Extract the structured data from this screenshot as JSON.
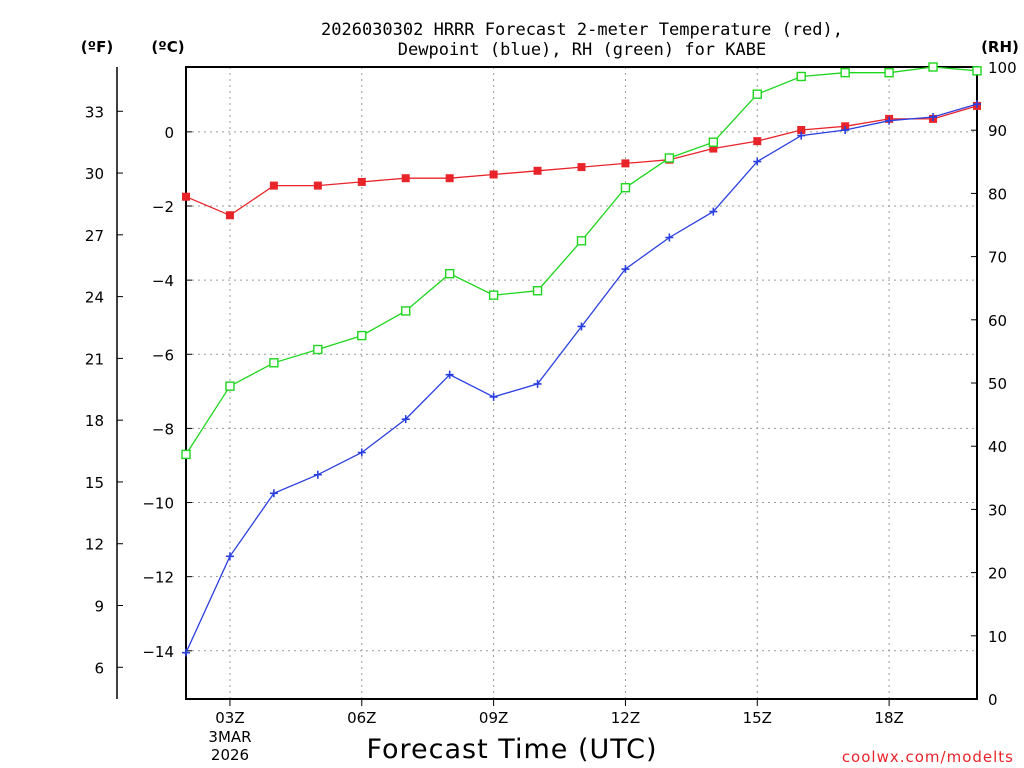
{
  "chart_data": {
    "type": "line",
    "title_line1": "2026030302 HRRR Forecast 2-meter Temperature (red),",
    "title_line2": "Dewpoint (blue), RH (green) for KABE",
    "xlabel": "Forecast Time (UTC)",
    "date_line1": "3MAR",
    "date_line2": "2026",
    "credit": "coolwx.com/modelts",
    "unit_f": "(ºF)",
    "unit_c": "(ºC)",
    "unit_rh": "(RH)",
    "x_hours": [
      2,
      3,
      4,
      5,
      6,
      7,
      8,
      9,
      10,
      11,
      12,
      13,
      14,
      15,
      16,
      17,
      18,
      19,
      20
    ],
    "x_ticks": [
      {
        "hour": 3,
        "label": "03Z"
      },
      {
        "hour": 6,
        "label": "06Z"
      },
      {
        "hour": 9,
        "label": "09Z"
      },
      {
        "hour": 12,
        "label": "12Z"
      },
      {
        "hour": 15,
        "label": "15Z"
      },
      {
        "hour": 18,
        "label": "18Z"
      }
    ],
    "celsius_range": [
      -15.3,
      1.75
    ],
    "celsius_ticks": [
      0,
      -2,
      -4,
      -6,
      -8,
      -10,
      -12,
      -14
    ],
    "fahrenheit_ticks": [
      33,
      30,
      27,
      24,
      21,
      18,
      15,
      12,
      9,
      6
    ],
    "rh_range": [
      0,
      100
    ],
    "rh_ticks": [
      0,
      10,
      20,
      30,
      40,
      50,
      60,
      70,
      80,
      90,
      100
    ],
    "series": [
      {
        "name": "Temperature",
        "units": "C",
        "axis": "left",
        "color": "#e8242a",
        "marker": "filled-square",
        "values": [
          -1.75,
          -2.25,
          -1.45,
          -1.45,
          -1.35,
          -1.25,
          -1.25,
          -1.15,
          -1.05,
          -0.95,
          -0.85,
          -0.75,
          -0.45,
          -0.25,
          0.05,
          0.15,
          0.35,
          0.35,
          0.7
        ]
      },
      {
        "name": "Dewpoint",
        "units": "C",
        "axis": "left",
        "color": "#2a3fe0",
        "marker": "plus",
        "values": [
          -14.05,
          -11.45,
          -9.75,
          -9.25,
          -8.65,
          -7.75,
          -6.55,
          -7.15,
          -6.8,
          -5.25,
          -3.7,
          -2.85,
          -2.15,
          -0.8,
          -0.1,
          0.05,
          0.3,
          0.4,
          0.75
        ]
      },
      {
        "name": "RH",
        "units": "%",
        "axis": "right",
        "color": "#1ed61e",
        "marker": "open-square",
        "values": [
          38.7,
          49.5,
          53.2,
          55.3,
          57.5,
          61.4,
          67.3,
          63.9,
          64.6,
          72.5,
          80.9,
          85.6,
          88.1,
          95.7,
          98.5,
          99.1,
          99.1,
          100.0,
          99.4
        ]
      }
    ]
  }
}
